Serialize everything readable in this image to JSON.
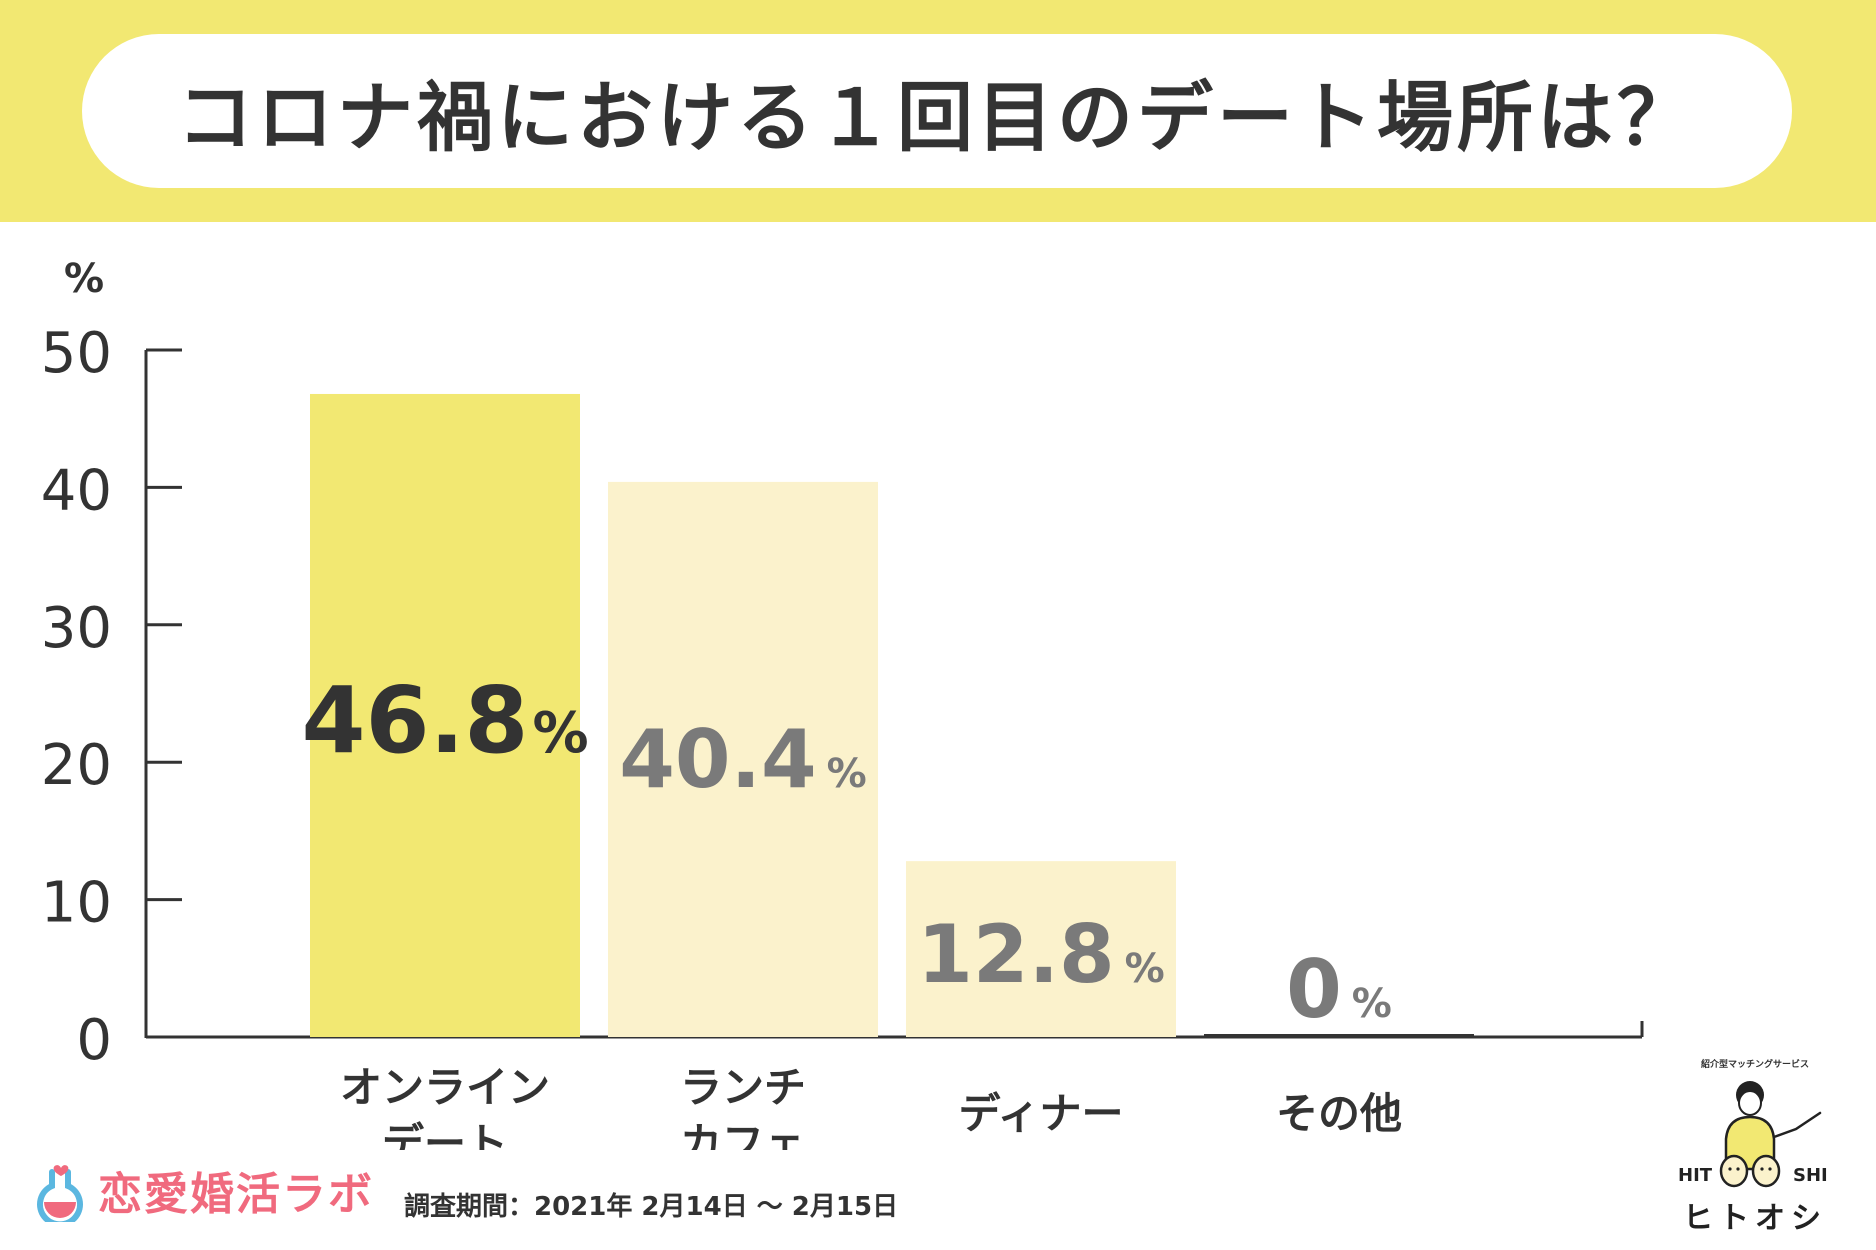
{
  "title": "コロナ禍における１回目のデート場所は？",
  "brand": {
    "name": "恋愛婚活ラボ",
    "color": "#f06a7e",
    "icon": "flask-heart-icon"
  },
  "survey_period": "調査期間：2021年 2月14日 〜 2月15日",
  "logo": {
    "tagline": "紹介型マッチングサービス",
    "left_text": "HIT",
    "right_text": "SHI",
    "kana": "ヒトオシ",
    "icon": "mascot-person-icon"
  },
  "colors": {
    "band": "#f2e872",
    "bar_primary": "#f2e872",
    "bar_secondary": "#fbf2cc",
    "text_dark": "#333333",
    "text_gray": "#7a7a7a"
  },
  "chart_data": {
    "type": "bar",
    "unit_label": "%",
    "categories": [
      [
        "オンライン",
        "デート"
      ],
      [
        "ランチ",
        "カフェ"
      ],
      [
        "ディナー"
      ],
      [
        "その他"
      ]
    ],
    "values": [
      46.8,
      40.4,
      12.8,
      0
    ],
    "value_labels": [
      "46.8",
      "40.4",
      "12.8",
      "0"
    ],
    "value_suffix": "%",
    "ylim": [
      0,
      50
    ],
    "yticks": [
      0,
      10,
      20,
      30,
      40,
      50
    ],
    "grid": false
  }
}
